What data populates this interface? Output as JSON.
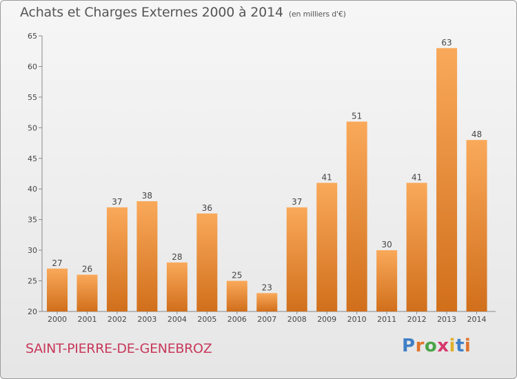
{
  "title": "Achats et Charges Externes 2000 à 2014",
  "subtitle": "(en milliers d'€)",
  "commune": "SAINT-PIERRE-DE-GENEBROZ",
  "logo": {
    "letters": [
      "P",
      "r",
      "o",
      "x",
      "i",
      "t",
      "i"
    ]
  },
  "colors": {
    "bar_top": "#f9a95a",
    "bar_bottom": "#d16f1b",
    "commune": "#c8385b"
  },
  "chart_data": {
    "type": "bar",
    "title": "Achats et Charges Externes 2000 à 2014",
    "subtitle": "(en milliers d'€)",
    "xlabel": "",
    "ylabel": "",
    "categories": [
      "2000",
      "2001",
      "2002",
      "2003",
      "2004",
      "2005",
      "2006",
      "2007",
      "2008",
      "2009",
      "2010",
      "2011",
      "2012",
      "2013",
      "2014"
    ],
    "values": [
      27,
      26,
      37,
      38,
      28,
      36,
      25,
      23,
      37,
      41,
      51,
      30,
      41,
      63,
      48
    ],
    "ylim": [
      20,
      65
    ],
    "yticks": [
      20,
      25,
      30,
      35,
      40,
      45,
      50,
      55,
      60,
      65
    ],
    "grid": false,
    "data_labels": true
  }
}
